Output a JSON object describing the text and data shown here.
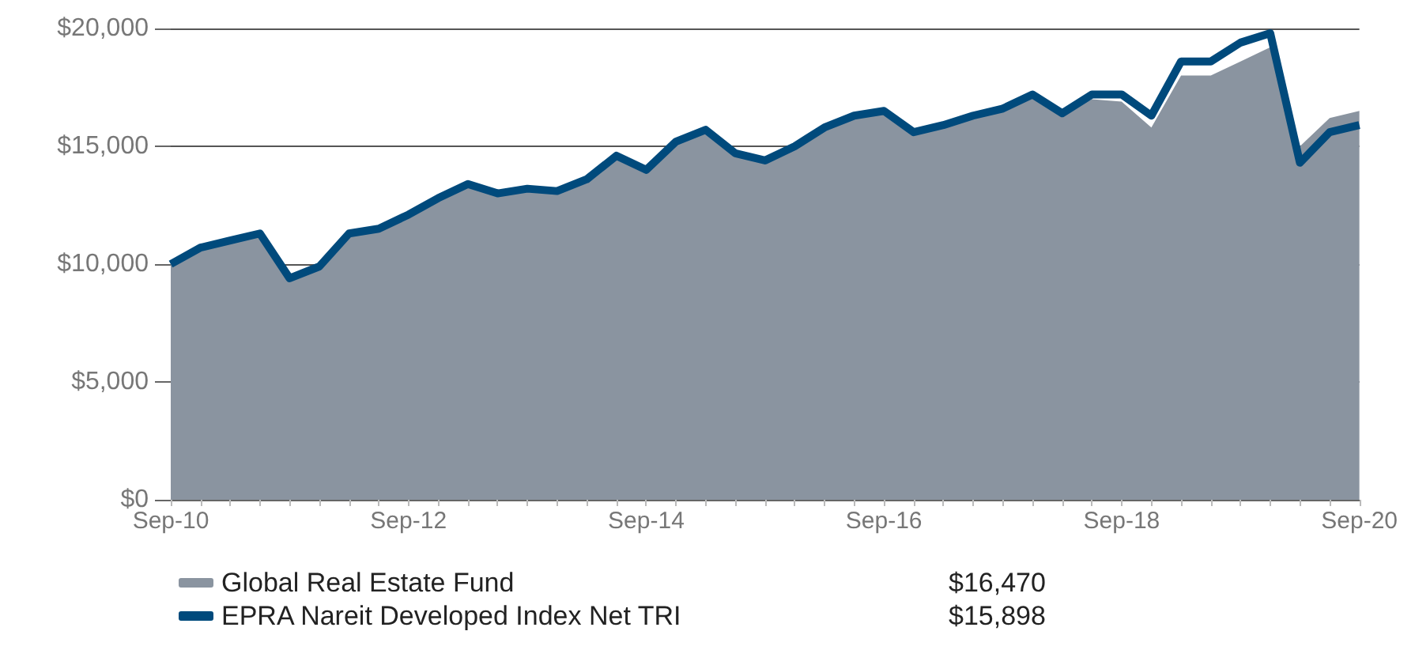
{
  "chart_data": {
    "type": "area",
    "categories": [
      "Sep-10",
      null,
      null,
      null,
      null,
      null,
      null,
      null,
      "Sep-12",
      null,
      null,
      null,
      null,
      null,
      null,
      null,
      "Sep-14",
      null,
      null,
      null,
      null,
      null,
      null,
      null,
      "Sep-16",
      null,
      null,
      null,
      null,
      null,
      null,
      null,
      "Sep-18",
      null,
      null,
      null,
      null,
      null,
      null,
      null,
      "Sep-20"
    ],
    "series": [
      {
        "name": "Global Real Estate Fund",
        "color": "#8a94a0",
        "values": [
          10000,
          10700,
          11000,
          11300,
          9400,
          9900,
          11300,
          11600,
          12100,
          12800,
          13400,
          13000,
          13200,
          13100,
          13600,
          14600,
          14000,
          15200,
          15700,
          14800,
          14500,
          15000,
          15800,
          16300,
          16500,
          15600,
          15900,
          16300,
          16500,
          17200,
          16400,
          17000,
          16900,
          15800,
          18000,
          18000,
          18600,
          19200,
          15000,
          16200,
          16500
        ]
      },
      {
        "name": "EPRA Nareit Developed Index Net TRI",
        "type": "line",
        "color": "#004a7c",
        "values": [
          10000,
          10700,
          11000,
          11300,
          9400,
          9900,
          11300,
          11500,
          12100,
          12800,
          13400,
          13000,
          13200,
          13100,
          13600,
          14600,
          14000,
          15200,
          15700,
          14700,
          14400,
          15000,
          15800,
          16300,
          16500,
          15600,
          15900,
          16300,
          16600,
          17200,
          16400,
          17200,
          17200,
          16300,
          18600,
          18600,
          19400,
          19800,
          14300,
          15600,
          15900
        ]
      }
    ],
    "annotations": [
      "$16,470",
      "$15,898"
    ],
    "ylim": [
      0,
      20000
    ],
    "yticks": [
      {
        "value": 0,
        "label": "$0"
      },
      {
        "value": 5000,
        "label": "$5,000"
      },
      {
        "value": 10000,
        "label": "$10,000"
      },
      {
        "value": 15000,
        "label": "$15,000"
      },
      {
        "value": 20000,
        "label": "$20,000"
      }
    ],
    "grid": "y",
    "legend": "bottom",
    "marker": "none"
  }
}
